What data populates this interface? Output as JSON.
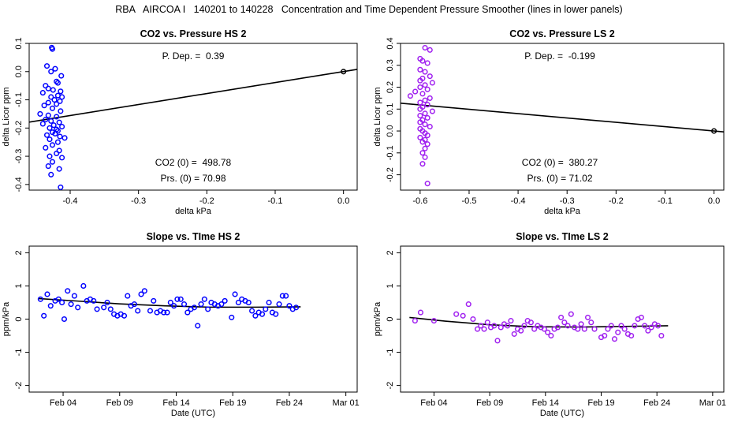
{
  "page_title": "RBA   AIRCOA I   140201 to 140228   Concentration and Time Dependent Pressure Smoother (lines in lower panels)",
  "colors": {
    "hs": "#0000ff",
    "ls": "#a020f0",
    "line": "#000000"
  },
  "chart_data": [
    {
      "id": "p1",
      "type": "scatter",
      "title": "CO2 vs. Pressure HS 2",
      "xlabel": "delta kPa",
      "ylabel": "delta Licor ppm",
      "xlim": [
        -0.46,
        0.02
      ],
      "ylim": [
        -0.42,
        0.1
      ],
      "xticks": [
        -0.4,
        -0.3,
        -0.2,
        -0.1,
        0.0
      ],
      "xtick_labels": [
        "-0.4",
        "-0.3",
        "-0.2",
        "-0.1",
        "0.0"
      ],
      "yticks": [
        -0.4,
        -0.3,
        -0.2,
        -0.1,
        0.0,
        0.1
      ],
      "ytick_labels": [
        "-0.4",
        "-0.3",
        "-0.2",
        "-0.1",
        "0.0",
        "0.1"
      ],
      "annotations": {
        "pdep": "P. Dep. =  0.39",
        "co2_0": "CO2 (0) =  498.78",
        "prs_0": "Prs. (0) = 70.98"
      },
      "points": [
        [
          -0.427,
          0.085
        ],
        [
          -0.426,
          0.08
        ],
        [
          -0.434,
          0.02
        ],
        [
          -0.422,
          0.01
        ],
        [
          -0.428,
          0.0
        ],
        [
          -0.413,
          -0.015
        ],
        [
          -0.42,
          -0.035
        ],
        [
          -0.418,
          -0.04
        ],
        [
          -0.436,
          -0.05
        ],
        [
          -0.432,
          -0.06
        ],
        [
          -0.425,
          -0.065
        ],
        [
          -0.414,
          -0.07
        ],
        [
          -0.44,
          -0.075
        ],
        [
          -0.418,
          -0.085
        ],
        [
          -0.428,
          -0.09
        ],
        [
          -0.412,
          -0.09
        ],
        [
          -0.423,
          -0.1
        ],
        [
          -0.415,
          -0.105
        ],
        [
          -0.432,
          -0.11
        ],
        [
          -0.42,
          -0.115
        ],
        [
          -0.438,
          -0.12
        ],
        [
          -0.426,
          -0.13
        ],
        [
          -0.414,
          -0.14
        ],
        [
          -0.444,
          -0.15
        ],
        [
          -0.432,
          -0.155
        ],
        [
          -0.42,
          -0.16
        ],
        [
          -0.436,
          -0.17
        ],
        [
          -0.428,
          -0.175
        ],
        [
          -0.416,
          -0.18
        ],
        [
          -0.44,
          -0.185
        ],
        [
          -0.424,
          -0.19
        ],
        [
          -0.412,
          -0.195
        ],
        [
          -0.43,
          -0.2
        ],
        [
          -0.42,
          -0.205
        ],
        [
          -0.418,
          -0.21
        ],
        [
          -0.426,
          -0.215
        ],
        [
          -0.422,
          -0.22
        ],
        [
          -0.434,
          -0.225
        ],
        [
          -0.415,
          -0.23
        ],
        [
          -0.408,
          -0.235
        ],
        [
          -0.43,
          -0.24
        ],
        [
          -0.418,
          -0.25
        ],
        [
          -0.426,
          -0.26
        ],
        [
          -0.436,
          -0.27
        ],
        [
          -0.416,
          -0.28
        ],
        [
          -0.42,
          -0.29
        ],
        [
          -0.43,
          -0.3
        ],
        [
          -0.412,
          -0.305
        ],
        [
          -0.426,
          -0.32
        ],
        [
          -0.432,
          -0.335
        ],
        [
          -0.416,
          -0.345
        ],
        [
          -0.428,
          -0.365
        ],
        [
          -0.414,
          -0.41
        ]
      ],
      "line": [
        [
          -0.46,
          -0.179
        ],
        [
          0.02,
          0.008
        ]
      ],
      "origin_marker": [
        0.0,
        0.0
      ]
    },
    {
      "id": "p2",
      "type": "scatter",
      "title": "CO2 vs. Pressure LS 2",
      "xlabel": "delta kPa",
      "ylabel": "delta Licor ppm",
      "xlim": [
        -0.64,
        0.02
      ],
      "ylim": [
        -0.27,
        0.4
      ],
      "xticks": [
        -0.6,
        -0.5,
        -0.4,
        -0.3,
        -0.2,
        -0.1,
        0.0
      ],
      "xtick_labels": [
        "-0.6",
        "-0.5",
        "-0.4",
        "-0.3",
        "-0.2",
        "-0.1",
        "0.0"
      ],
      "yticks": [
        -0.2,
        -0.1,
        0.0,
        0.1,
        0.2,
        0.3,
        0.4
      ],
      "ytick_labels": [
        "-0.2",
        "-0.1",
        "0.0",
        "0.1",
        "0.2",
        "0.3",
        "0.4"
      ],
      "annotations": {
        "pdep": "P. Dep. =  -0.199",
        "co2_0": "CO2 (0) =  380.27",
        "prs_0": "Prs. (0) = 71.02"
      },
      "points": [
        [
          -0.59,
          0.38
        ],
        [
          -0.58,
          0.37
        ],
        [
          -0.6,
          0.33
        ],
        [
          -0.595,
          0.32
        ],
        [
          -0.585,
          0.31
        ],
        [
          -0.6,
          0.28
        ],
        [
          -0.59,
          0.27
        ],
        [
          -0.58,
          0.25
        ],
        [
          -0.595,
          0.24
        ],
        [
          -0.6,
          0.23
        ],
        [
          -0.575,
          0.22
        ],
        [
          -0.59,
          0.21
        ],
        [
          -0.6,
          0.2
        ],
        [
          -0.585,
          0.19
        ],
        [
          -0.61,
          0.18
        ],
        [
          -0.595,
          0.17
        ],
        [
          -0.62,
          0.16
        ],
        [
          -0.58,
          0.15
        ],
        [
          -0.59,
          0.14
        ],
        [
          -0.6,
          0.13
        ],
        [
          -0.585,
          0.12
        ],
        [
          -0.595,
          0.11
        ],
        [
          -0.6,
          0.1
        ],
        [
          -0.575,
          0.09
        ],
        [
          -0.59,
          0.08
        ],
        [
          -0.6,
          0.07
        ],
        [
          -0.585,
          0.06
        ],
        [
          -0.595,
          0.05
        ],
        [
          -0.6,
          0.04
        ],
        [
          -0.59,
          0.03
        ],
        [
          -0.58,
          0.02
        ],
        [
          -0.6,
          0.01
        ],
        [
          -0.595,
          0.0
        ],
        [
          -0.59,
          -0.01
        ],
        [
          -0.585,
          -0.02
        ],
        [
          -0.6,
          -0.03
        ],
        [
          -0.59,
          -0.04
        ],
        [
          -0.595,
          -0.05
        ],
        [
          -0.585,
          -0.06
        ],
        [
          -0.59,
          -0.08
        ],
        [
          -0.595,
          -0.1
        ],
        [
          -0.59,
          -0.12
        ],
        [
          -0.595,
          -0.15
        ],
        [
          -0.585,
          -0.24
        ]
      ],
      "line": [
        [
          -0.64,
          0.127
        ],
        [
          0.02,
          -0.004
        ]
      ],
      "origin_marker": [
        0.0,
        0.0
      ]
    },
    {
      "id": "p3",
      "type": "scatter",
      "title": "Slope vs. TIme HS 2",
      "xlabel": "Date (UTC)",
      "ylabel": "ppm/kPa",
      "xlim": [
        0.0,
        29.0
      ],
      "ylim": [
        -2.2,
        2.2
      ],
      "xticks": [
        3,
        8,
        13,
        18,
        23,
        28
      ],
      "xtick_labels": [
        "Feb 04",
        "Feb 09",
        "Feb 14",
        "Feb 19",
        "Feb 24",
        "Mar 01"
      ],
      "yticks": [
        -2,
        -1,
        0,
        1,
        2
      ],
      "ytick_labels": [
        "-2",
        "-1",
        "0",
        "1",
        "2"
      ],
      "points": [
        [
          1.0,
          0.6
        ],
        [
          1.3,
          0.1
        ],
        [
          1.6,
          0.75
        ],
        [
          1.9,
          0.4
        ],
        [
          2.3,
          0.55
        ],
        [
          2.6,
          0.6
        ],
        [
          2.9,
          0.5
        ],
        [
          3.1,
          0.0
        ],
        [
          3.4,
          0.85
        ],
        [
          3.7,
          0.45
        ],
        [
          4.0,
          0.7
        ],
        [
          4.3,
          0.35
        ],
        [
          4.8,
          1.0
        ],
        [
          5.1,
          0.55
        ],
        [
          5.4,
          0.6
        ],
        [
          5.7,
          0.55
        ],
        [
          6.0,
          0.3
        ],
        [
          6.6,
          0.35
        ],
        [
          6.9,
          0.5
        ],
        [
          7.2,
          0.3
        ],
        [
          7.5,
          0.15
        ],
        [
          7.8,
          0.1
        ],
        [
          8.1,
          0.15
        ],
        [
          8.4,
          0.1
        ],
        [
          8.7,
          0.7
        ],
        [
          9.0,
          0.4
        ],
        [
          9.3,
          0.45
        ],
        [
          9.6,
          0.25
        ],
        [
          9.9,
          0.75
        ],
        [
          10.2,
          0.85
        ],
        [
          10.7,
          0.25
        ],
        [
          11.0,
          0.55
        ],
        [
          11.3,
          0.2
        ],
        [
          11.6,
          0.25
        ],
        [
          11.9,
          0.2
        ],
        [
          12.2,
          0.2
        ],
        [
          12.5,
          0.5
        ],
        [
          12.8,
          0.4
        ],
        [
          13.1,
          0.6
        ],
        [
          13.4,
          0.6
        ],
        [
          13.7,
          0.45
        ],
        [
          14.0,
          0.2
        ],
        [
          14.3,
          0.3
        ],
        [
          14.6,
          0.35
        ],
        [
          14.9,
          -0.2
        ],
        [
          15.2,
          0.45
        ],
        [
          15.5,
          0.6
        ],
        [
          15.8,
          0.3
        ],
        [
          16.1,
          0.5
        ],
        [
          16.4,
          0.45
        ],
        [
          16.7,
          0.4
        ],
        [
          17.0,
          0.45
        ],
        [
          17.3,
          0.55
        ],
        [
          17.9,
          0.05
        ],
        [
          18.2,
          0.75
        ],
        [
          18.5,
          0.5
        ],
        [
          18.8,
          0.6
        ],
        [
          19.1,
          0.55
        ],
        [
          19.4,
          0.5
        ],
        [
          19.7,
          0.25
        ],
        [
          20.0,
          0.1
        ],
        [
          20.3,
          0.2
        ],
        [
          20.6,
          0.15
        ],
        [
          20.9,
          0.3
        ],
        [
          21.2,
          0.5
        ],
        [
          21.5,
          0.2
        ],
        [
          21.8,
          0.15
        ],
        [
          22.1,
          0.45
        ],
        [
          22.4,
          0.7
        ],
        [
          22.7,
          0.7
        ],
        [
          23.0,
          0.4
        ],
        [
          23.3,
          0.3
        ],
        [
          23.6,
          0.35
        ]
      ],
      "line": [
        [
          0.8,
          0.62
        ],
        [
          4.0,
          0.55
        ],
        [
          8.0,
          0.46
        ],
        [
          12.0,
          0.4
        ],
        [
          16.0,
          0.36
        ],
        [
          20.0,
          0.36
        ],
        [
          24.0,
          0.37
        ]
      ]
    },
    {
      "id": "p4",
      "type": "scatter",
      "title": "Slope vs. TIme LS 2",
      "xlabel": "Date (UTC)",
      "ylabel": "ppm/kPa",
      "xlim": [
        0.0,
        29.0
      ],
      "ylim": [
        -2.2,
        2.2
      ],
      "xticks": [
        3,
        8,
        13,
        18,
        23,
        28
      ],
      "xtick_labels": [
        "Feb 04",
        "Feb 09",
        "Feb 14",
        "Feb 19",
        "Feb 24",
        "Mar 01"
      ],
      "yticks": [
        -2,
        -1,
        0,
        1,
        2
      ],
      "ytick_labels": [
        "-2",
        "-1",
        "0",
        "1",
        "2"
      ],
      "points": [
        [
          1.3,
          -0.05
        ],
        [
          1.8,
          0.2
        ],
        [
          3.0,
          -0.05
        ],
        [
          5.0,
          0.15
        ],
        [
          5.6,
          0.1
        ],
        [
          6.1,
          0.45
        ],
        [
          6.5,
          0.0
        ],
        [
          6.9,
          -0.3
        ],
        [
          7.2,
          -0.2
        ],
        [
          7.5,
          -0.3
        ],
        [
          7.8,
          -0.1
        ],
        [
          8.1,
          -0.25
        ],
        [
          8.4,
          -0.2
        ],
        [
          8.7,
          -0.65
        ],
        [
          9.0,
          -0.25
        ],
        [
          9.3,
          -0.15
        ],
        [
          9.6,
          -0.2
        ],
        [
          9.9,
          -0.05
        ],
        [
          10.2,
          -0.45
        ],
        [
          10.5,
          -0.3
        ],
        [
          10.8,
          -0.35
        ],
        [
          11.1,
          -0.2
        ],
        [
          11.4,
          -0.05
        ],
        [
          11.7,
          -0.1
        ],
        [
          12.0,
          -0.3
        ],
        [
          12.3,
          -0.2
        ],
        [
          12.6,
          -0.25
        ],
        [
          12.9,
          -0.3
        ],
        [
          13.2,
          -0.4
        ],
        [
          13.5,
          -0.5
        ],
        [
          13.8,
          -0.3
        ],
        [
          14.1,
          -0.25
        ],
        [
          14.4,
          0.05
        ],
        [
          14.7,
          -0.1
        ],
        [
          15.0,
          -0.2
        ],
        [
          15.3,
          0.15
        ],
        [
          15.6,
          -0.25
        ],
        [
          15.9,
          -0.3
        ],
        [
          16.2,
          -0.15
        ],
        [
          16.5,
          -0.3
        ],
        [
          16.8,
          0.05
        ],
        [
          17.1,
          -0.1
        ],
        [
          17.4,
          -0.3
        ],
        [
          18.0,
          -0.55
        ],
        [
          18.3,
          -0.5
        ],
        [
          18.6,
          -0.3
        ],
        [
          18.9,
          -0.2
        ],
        [
          19.2,
          -0.6
        ],
        [
          19.5,
          -0.4
        ],
        [
          19.8,
          -0.2
        ],
        [
          20.1,
          -0.3
        ],
        [
          20.4,
          -0.45
        ],
        [
          20.7,
          -0.5
        ],
        [
          21.0,
          -0.2
        ],
        [
          21.3,
          0.0
        ],
        [
          21.6,
          0.05
        ],
        [
          21.9,
          -0.2
        ],
        [
          22.2,
          -0.35
        ],
        [
          22.5,
          -0.25
        ],
        [
          22.8,
          -0.15
        ],
        [
          23.1,
          -0.2
        ],
        [
          23.4,
          -0.5
        ]
      ],
      "line": [
        [
          0.8,
          0.05
        ],
        [
          4.0,
          -0.06
        ],
        [
          8.0,
          -0.17
        ],
        [
          12.0,
          -0.23
        ],
        [
          16.0,
          -0.24
        ],
        [
          20.0,
          -0.22
        ],
        [
          24.0,
          -0.2
        ]
      ]
    }
  ]
}
